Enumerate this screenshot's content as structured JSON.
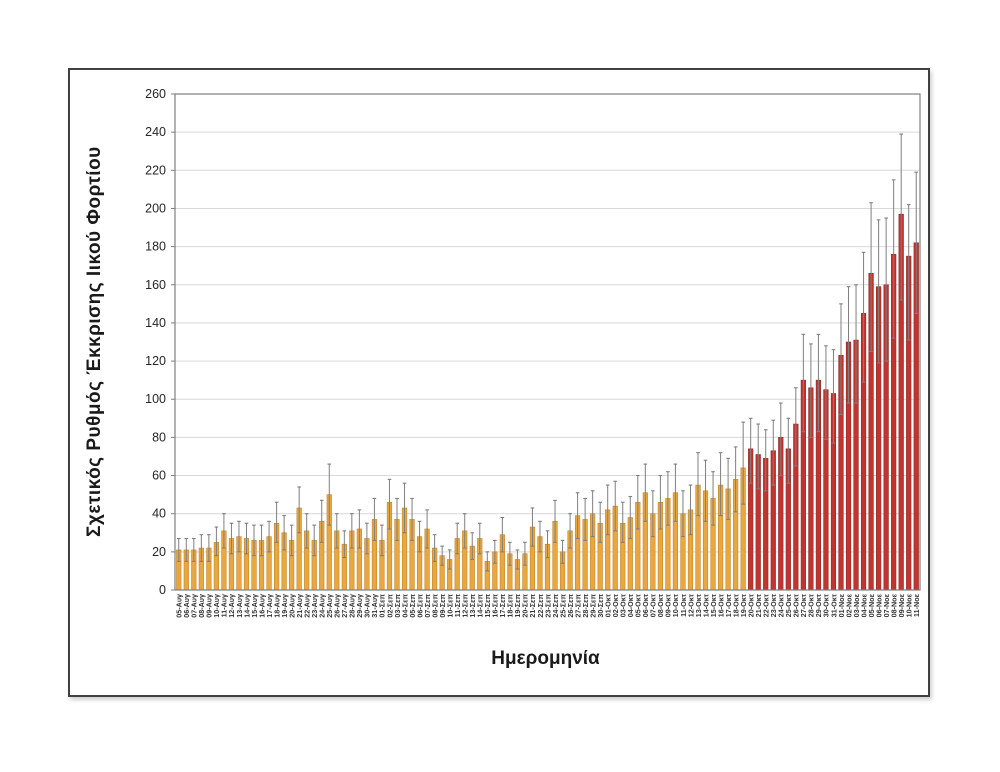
{
  "figure": {
    "background": "#ffffff",
    "frame_color": "#404040",
    "plot_border_color": "#7f7f7f",
    "gridline_color": "#d9d9d9",
    "tick_label_color": "#262626",
    "x_label_color": "#333333"
  },
  "chart_data": {
    "type": "bar",
    "title": "",
    "xlabel": "Ημερομηνία",
    "ylabel": "Σχετικός Ρυθμός Έκκρισης Ιικού Φορτίου",
    "ylim": [
      0,
      260
    ],
    "ytick_step": 20,
    "grid": true,
    "legend_position": "none",
    "error_bars": true,
    "series_note": "single series; bars before phase_change_index are amber, after are red",
    "phase_change_index": 76,
    "colors": {
      "bar_phase1_fill": "#EBA73F",
      "bar_phase1_stroke": "#C4872B",
      "bar_phase2_fill": "#C23430",
      "bar_phase2_stroke": "#932823",
      "error_bar": "#7f7f7f"
    },
    "categories": [
      "05-Αυγ",
      "06-Αυγ",
      "07-Αυγ",
      "08-Αυγ",
      "09-Αυγ",
      "10-Αυγ",
      "11-Αυγ",
      "12-Αυγ",
      "13-Αυγ",
      "14-Αυγ",
      "15-Αυγ",
      "16-Αυγ",
      "17-Αυγ",
      "18-Αυγ",
      "19-Αυγ",
      "20-Αυγ",
      "21-Αυγ",
      "22-Αυγ",
      "23-Αυγ",
      "24-Αυγ",
      "25-Αυγ",
      "26-Αυγ",
      "27-Αυγ",
      "28-Αυγ",
      "29-Αυγ",
      "30-Αυγ",
      "31-Αυγ",
      "01-Σεπ",
      "02-Σεπ",
      "03-Σεπ",
      "04-Σεπ",
      "05-Σεπ",
      "06-Σεπ",
      "07-Σεπ",
      "08-Σεπ",
      "09-Σεπ",
      "10-Σεπ",
      "11-Σεπ",
      "12-Σεπ",
      "13-Σεπ",
      "14-Σεπ",
      "15-Σεπ",
      "16-Σεπ",
      "17-Σεπ",
      "18-Σεπ",
      "19-Σεπ",
      "20-Σεπ",
      "21-Σεπ",
      "22-Σεπ",
      "23-Σεπ",
      "24-Σεπ",
      "25-Σεπ",
      "26-Σεπ",
      "27-Σεπ",
      "28-Σεπ",
      "29-Σεπ",
      "30-Σεπ",
      "01-Οκτ",
      "02-Οκτ",
      "03-Οκτ",
      "04-Οκτ",
      "05-Οκτ",
      "06-Οκτ",
      "07-Οκτ",
      "08-Οκτ",
      "09-Οκτ",
      "10-Οκτ",
      "11-Οκτ",
      "12-Οκτ",
      "13-Οκτ",
      "14-Οκτ",
      "15-Οκτ",
      "16-Οκτ",
      "17-Οκτ",
      "18-Οκτ",
      "19-Οκτ",
      "20-Οκτ",
      "21-Οκτ",
      "22-Οκτ",
      "23-Οκτ",
      "24-Οκτ",
      "25-Οκτ",
      "26-Οκτ",
      "27-Οκτ",
      "28-Οκτ",
      "29-Οκτ",
      "30-Οκτ",
      "31-Οκτ",
      "01-Νοε",
      "02-Νοε",
      "03-Νοε",
      "04-Νοε",
      "05-Νοε",
      "06-Νοε",
      "07-Νοε",
      "08-Νοε",
      "09-Νοε",
      "10-Νοε",
      "11-Νοε"
    ],
    "values": [
      21,
      21,
      21,
      22,
      22,
      25,
      31,
      27,
      28,
      27,
      26,
      26,
      28,
      35,
      30,
      26,
      43,
      31,
      26,
      36,
      50,
      31,
      24,
      31,
      32,
      27,
      37,
      26,
      46,
      37,
      43,
      37,
      28,
      32,
      22,
      18,
      16,
      27,
      31,
      23,
      27,
      15,
      20,
      29,
      19,
      16,
      19,
      33,
      28,
      24,
      36,
      20,
      31,
      39,
      37,
      40,
      35,
      42,
      44,
      35,
      38,
      46,
      51,
      40,
      46,
      48,
      51,
      40,
      42,
      55,
      52,
      48,
      55,
      53,
      58,
      64,
      74,
      71,
      69,
      73,
      80,
      74,
      87,
      110,
      106,
      110,
      105,
      103,
      123,
      130,
      131,
      145,
      166,
      159,
      160,
      176,
      197,
      175,
      182
    ],
    "err_high": [
      27,
      27,
      27,
      29,
      29,
      33,
      40,
      35,
      36,
      35,
      34,
      34,
      36,
      46,
      39,
      34,
      54,
      40,
      34,
      47,
      66,
      40,
      31,
      40,
      42,
      35,
      48,
      34,
      58,
      48,
      56,
      48,
      36,
      42,
      29,
      23,
      21,
      35,
      40,
      30,
      35,
      20,
      26,
      38,
      25,
      21,
      25,
      43,
      36,
      31,
      47,
      26,
      40,
      51,
      48,
      52,
      46,
      55,
      57,
      46,
      49,
      60,
      66,
      52,
      60,
      62,
      66,
      52,
      55,
      72,
      68,
      62,
      72,
      69,
      75,
      88,
      90,
      87,
      84,
      89,
      98,
      90,
      106,
      134,
      129,
      134,
      128,
      126,
      150,
      159,
      160,
      177,
      203,
      194,
      195,
      215,
      239,
      202,
      219
    ],
    "err_low": [
      15,
      15,
      15,
      15,
      15,
      18,
      22,
      19,
      20,
      19,
      18,
      18,
      20,
      25,
      21,
      18,
      30,
      22,
      18,
      25,
      34,
      22,
      17,
      22,
      22,
      19,
      26,
      18,
      32,
      26,
      30,
      26,
      20,
      22,
      15,
      13,
      11,
      19,
      22,
      16,
      19,
      10,
      14,
      20,
      13,
      11,
      13,
      23,
      20,
      17,
      25,
      14,
      22,
      27,
      26,
      28,
      25,
      29,
      31,
      25,
      27,
      32,
      36,
      28,
      32,
      34,
      36,
      28,
      29,
      39,
      36,
      34,
      39,
      37,
      41,
      45,
      56,
      53,
      52,
      55,
      60,
      56,
      65,
      83,
      80,
      83,
      79,
      77,
      92,
      98,
      98,
      109,
      125,
      119,
      120,
      132,
      152,
      131,
      145
    ]
  }
}
